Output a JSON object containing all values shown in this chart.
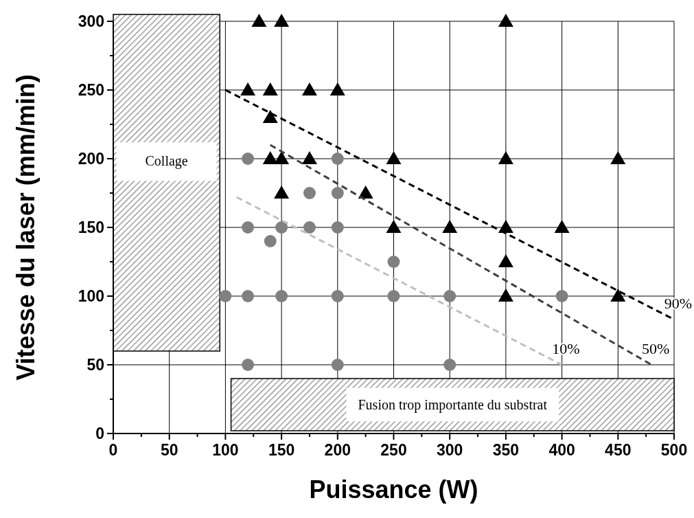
{
  "chart_data": {
    "type": "scatter",
    "xlabel": "Puissance (W)",
    "ylabel": "Vitesse du laser (mm/min)",
    "xlim": [
      0,
      500
    ],
    "ylim": [
      0,
      300
    ],
    "xticks": [
      0,
      {
        "value": 25,
        "label": null
      },
      50,
      {
        "value": 75,
        "label": null
      },
      100,
      {
        "value": 125,
        "label": null
      },
      150,
      {
        "value": 175,
        "label": null
      },
      200,
      {
        "value": 225,
        "label": null
      },
      250,
      {
        "value": 275,
        "label": null
      },
      300,
      {
        "value": 325,
        "label": null
      },
      350,
      {
        "value": 375,
        "label": null
      },
      400,
      {
        "value": 425,
        "label": null
      },
      450,
      {
        "value": 475,
        "label": null
      },
      500
    ],
    "yticks": [
      0,
      {
        "value": 25,
        "label": null
      },
      50,
      {
        "value": 75,
        "label": null
      },
      100,
      {
        "value": 125,
        "label": null
      },
      150,
      {
        "value": 175,
        "label": null
      },
      200,
      {
        "value": 225,
        "label": null
      },
      250,
      {
        "value": 275,
        "label": null
      },
      300
    ],
    "grid": true,
    "legend": false,
    "bands": [
      {
        "axis": "x",
        "from": 0,
        "to": 95,
        "label": "Collage"
      },
      {
        "axis": "y",
        "from": 2,
        "to": 40,
        "label": "Fusion trop importante du substrat"
      }
    ],
    "series": [
      {
        "marker": "circle",
        "color": "#808080",
        "x": [
          100,
          120,
          120,
          120,
          120,
          140,
          150,
          150,
          175,
          175,
          200,
          200,
          200,
          200,
          200,
          250,
          250,
          300,
          300,
          400
        ],
        "values": [
          100,
          100,
          150,
          200,
          50,
          140,
          150,
          100,
          175,
          150,
          200,
          175,
          150,
          100,
          50,
          125,
          100,
          100,
          50,
          100
        ]
      },
      {
        "marker": "triangle",
        "color": "#000000",
        "x": [
          130,
          150,
          350,
          120,
          140,
          175,
          200,
          140,
          140,
          150,
          175,
          250,
          350,
          450,
          150,
          225,
          250,
          300,
          350,
          400,
          350,
          350,
          450
        ],
        "values": [
          300,
          300,
          300,
          250,
          250,
          250,
          250,
          230,
          200,
          200,
          200,
          200,
          200,
          200,
          175,
          175,
          150,
          150,
          150,
          150,
          125,
          100,
          100
        ]
      },
      {
        "type": "line",
        "name": "90%",
        "line_style": "dashed",
        "color": "#000000",
        "x": [
          100,
          500
        ],
        "values": [
          250,
          83
        ]
      },
      {
        "type": "line",
        "name": "50%",
        "line_style": "dashed",
        "color": "#404040",
        "x": [
          140,
          480
        ],
        "values": [
          210,
          50
        ]
      },
      {
        "type": "line",
        "name": "10%",
        "line_style": "dashed",
        "color": "#c0c0c0",
        "x": [
          110,
          400
        ],
        "values": [
          172,
          50
        ]
      }
    ]
  }
}
